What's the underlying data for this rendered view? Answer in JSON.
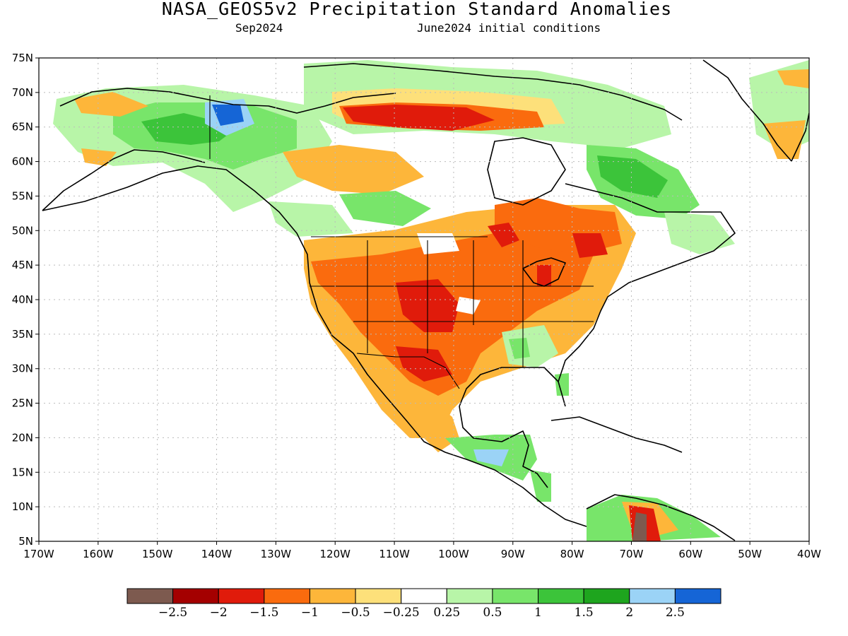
{
  "title": "NASA_GEOS5v2 Precipitation Standard Anomalies",
  "subtitle_left": "Sep2024",
  "subtitle_right": "June2024 initial conditions",
  "map": {
    "lon_range": [
      -170,
      -40
    ],
    "lat_range": [
      5,
      75
    ],
    "lon_ticks": [
      "170W",
      "160W",
      "150W",
      "140W",
      "130W",
      "120W",
      "110W",
      "100W",
      "90W",
      "80W",
      "70W",
      "60W",
      "50W",
      "40W"
    ],
    "lat_ticks": [
      "5N",
      "10N",
      "15N",
      "20N",
      "25N",
      "30N",
      "35N",
      "40N",
      "45N",
      "50N",
      "55N",
      "60N",
      "65N",
      "70N",
      "75N"
    ],
    "grid": "dotted"
  },
  "colorbar": {
    "colors": [
      "#7d5a4f",
      "#a40000",
      "#e01b0b",
      "#fa6b0e",
      "#fdb63a",
      "#fde07a",
      "#ffffff",
      "#b8f5a8",
      "#78e56a",
      "#3cc43a",
      "#1ea51e",
      "#9bd3f6",
      "#1565d6"
    ],
    "labels": [
      "−2.5",
      "−2",
      "−1.5",
      "−1",
      "−0.5",
      "−0.25",
      "0.25",
      "0.5",
      "1",
      "1.5",
      "2",
      "2.5"
    ]
  }
}
